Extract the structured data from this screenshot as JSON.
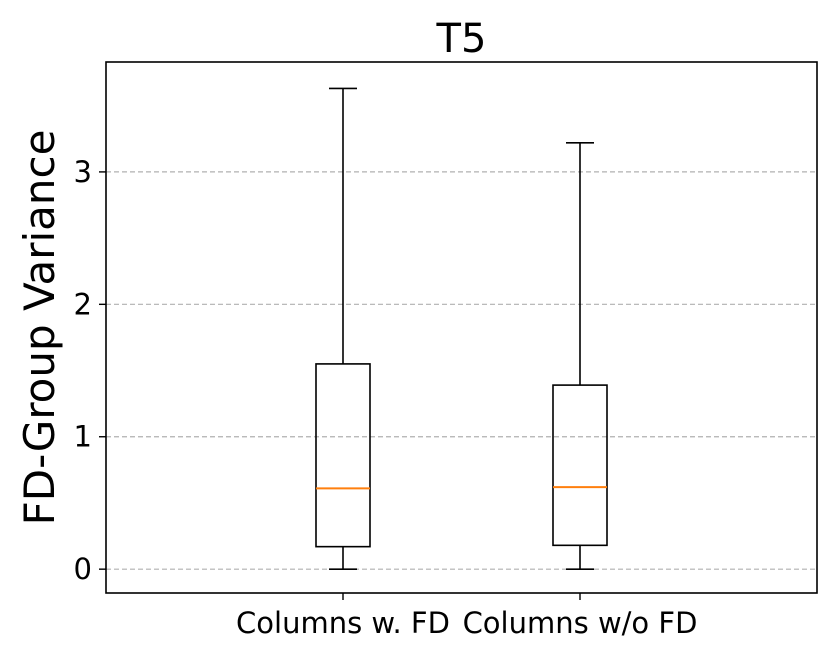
{
  "chart_data": {
    "type": "box",
    "title": "T5",
    "ylabel": "FD-Group Variance",
    "xlabel": "",
    "categories": [
      "Columns w. FD",
      "Columns w/o FD"
    ],
    "boxes": [
      {
        "name": "Columns w. FD",
        "whisker_low": 0.0,
        "q1": 0.17,
        "median": 0.61,
        "q3": 1.55,
        "whisker_high": 3.63
      },
      {
        "name": "Columns w/o FD",
        "whisker_low": 0.0,
        "q1": 0.18,
        "median": 0.62,
        "q3": 1.39,
        "whisker_high": 3.22
      }
    ],
    "ylim": [
      -0.18,
      3.83
    ],
    "yticks": [
      0,
      1,
      2,
      3
    ],
    "ytick_labels": [
      "0",
      "1",
      "2",
      "3"
    ],
    "grid": "y-dashed",
    "colors": {
      "box": "#000000",
      "median": "#ff7f0e",
      "grid": "#b0b0b0"
    }
  }
}
